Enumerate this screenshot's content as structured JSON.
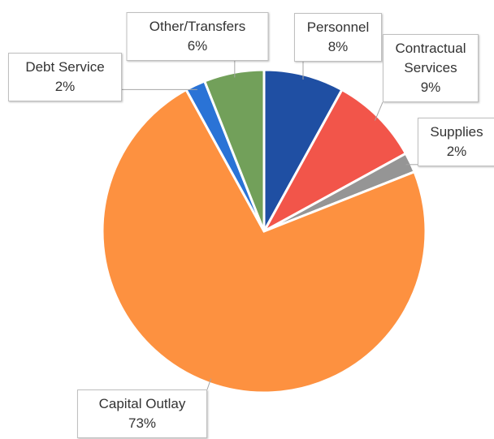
{
  "chart_data": {
    "type": "pie",
    "categories": [
      "Personnel",
      "Contractual Services",
      "Supplies",
      "Capital Outlay",
      "Debt Service",
      "Other/Transfers"
    ],
    "values": [
      8,
      9,
      2,
      73,
      2,
      6
    ],
    "value_labels": [
      "8%",
      "9%",
      "2%",
      "73%",
      "2%",
      "6%"
    ],
    "colors": [
      "#1f4fa3",
      "#f2554a",
      "#959595",
      "#fd9140",
      "#2a73d6",
      "#72a05a"
    ]
  }
}
